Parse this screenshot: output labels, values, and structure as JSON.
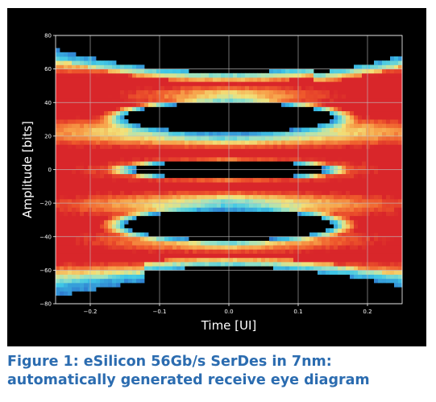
{
  "caption": "Figure 1: eSilicon 56Gb/s SerDes in 7nm: automatically generated receive eye diagram",
  "colors": {
    "background": "#000000",
    "grid": "#bfbfbf",
    "caption": "#2b6cb0",
    "colormap": [
      "#2b3ea8",
      "#2f7fd0",
      "#3fc7e6",
      "#9be3c3",
      "#f2e27a",
      "#f7a24a",
      "#ef5a2c",
      "#d9262a"
    ]
  },
  "chart_data": {
    "type": "heatmap",
    "title": "",
    "xlabel": "Time [UI]",
    "ylabel": "Amplitude [bits]",
    "xlim": [
      -0.25,
      0.25
    ],
    "ylim": [
      -80,
      80
    ],
    "xticks": [
      -0.2,
      -0.1,
      0.0,
      0.1,
      0.2
    ],
    "xtick_labels": [
      "−0.2",
      "−0.1",
      "0.0",
      "0.1",
      "0.2"
    ],
    "yticks": [
      -80,
      -60,
      -40,
      -20,
      0,
      20,
      40,
      60,
      80
    ],
    "ytick_labels": [
      "−80",
      "−60",
      "−40",
      "−20",
      "0",
      "20",
      "40",
      "60",
      "80"
    ],
    "grid": true,
    "signal_levels": [
      53,
      35,
      10,
      -10,
      -32,
      -52
    ],
    "eyes": [
      {
        "center_amplitude": 31,
        "half_height": 9,
        "half_width_ui": 0.15
      },
      {
        "center_amplitude": 0,
        "half_height": 5,
        "half_width_ui": 0.14
      },
      {
        "center_amplitude": -33,
        "half_height": 9,
        "half_width_ui": 0.15
      }
    ]
  }
}
